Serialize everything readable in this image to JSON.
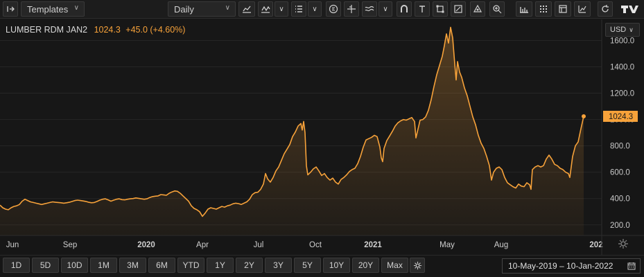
{
  "toolbar": {
    "templates_label": "Templates",
    "interval_label": "Daily"
  },
  "instrument": {
    "name": "LUMBER RDM JAN2",
    "last": "1024.3",
    "change": "+45.0 (+4.60%)",
    "currency": "USD"
  },
  "colors": {
    "line": "#f7a23a",
    "background": "#161616",
    "grid": "#262626"
  },
  "chart_data": {
    "type": "area",
    "y_ticks": [
      "1600.0",
      "1400.0",
      "1200.0",
      "1000.0",
      "800.0",
      "600.0",
      "400.0",
      "200.0"
    ],
    "ylim": [
      120,
      1760
    ],
    "x_ticks": [
      "Jun",
      "Sep",
      "2020",
      "Apr",
      "Jul",
      "Oct",
      "2021",
      "May",
      "Aug",
      "202"
    ],
    "last_price_label": "1024.3",
    "series": [
      {
        "points": [
          [
            0,
            350
          ],
          [
            4,
            330
          ],
          [
            8,
            320
          ],
          [
            12,
            315
          ],
          [
            16,
            330
          ],
          [
            20,
            340
          ],
          [
            24,
            345
          ],
          [
            28,
            355
          ],
          [
            32,
            380
          ],
          [
            36,
            395
          ],
          [
            40,
            385
          ],
          [
            44,
            375
          ],
          [
            48,
            370
          ],
          [
            52,
            365
          ],
          [
            56,
            360
          ],
          [
            60,
            355
          ],
          [
            64,
            360
          ],
          [
            68,
            365
          ],
          [
            72,
            370
          ],
          [
            76,
            375
          ],
          [
            80,
            372
          ],
          [
            84,
            370
          ],
          [
            88,
            368
          ],
          [
            92,
            365
          ],
          [
            96,
            368
          ],
          [
            100,
            372
          ],
          [
            104,
            378
          ],
          [
            108,
            385
          ],
          [
            112,
            388
          ],
          [
            116,
            385
          ],
          [
            120,
            382
          ],
          [
            124,
            378
          ],
          [
            128,
            372
          ],
          [
            132,
            368
          ],
          [
            136,
            370
          ],
          [
            140,
            378
          ],
          [
            144,
            388
          ],
          [
            148,
            395
          ],
          [
            152,
            398
          ],
          [
            156,
            390
          ],
          [
            160,
            380
          ],
          [
            164,
            388
          ],
          [
            168,
            395
          ],
          [
            172,
            398
          ],
          [
            176,
            392
          ],
          [
            180,
            390
          ],
          [
            184,
            395
          ],
          [
            188,
            398
          ],
          [
            192,
            400
          ],
          [
            196,
            405
          ],
          [
            200,
            402
          ],
          [
            204,
            398
          ],
          [
            208,
            395
          ],
          [
            212,
            398
          ],
          [
            216,
            408
          ],
          [
            220,
            415
          ],
          [
            224,
            418
          ],
          [
            228,
            420
          ],
          [
            232,
            430
          ],
          [
            236,
            428
          ],
          [
            240,
            425
          ],
          [
            244,
            440
          ],
          [
            248,
            450
          ],
          [
            252,
            458
          ],
          [
            256,
            455
          ],
          [
            260,
            440
          ],
          [
            264,
            420
          ],
          [
            268,
            400
          ],
          [
            272,
            380
          ],
          [
            276,
            345
          ],
          [
            280,
            325
          ],
          [
            284,
            315
          ],
          [
            288,
            300
          ],
          [
            292,
            265
          ],
          [
            296,
            290
          ],
          [
            300,
            320
          ],
          [
            304,
            330
          ],
          [
            308,
            325
          ],
          [
            312,
            320
          ],
          [
            316,
            330
          ],
          [
            320,
            340
          ],
          [
            324,
            335
          ],
          [
            328,
            345
          ],
          [
            332,
            350
          ],
          [
            336,
            360
          ],
          [
            340,
            365
          ],
          [
            344,
            362
          ],
          [
            348,
            355
          ],
          [
            352,
            365
          ],
          [
            356,
            375
          ],
          [
            360,
            395
          ],
          [
            364,
            430
          ],
          [
            368,
            445
          ],
          [
            372,
            448
          ],
          [
            376,
            470
          ],
          [
            380,
            510
          ],
          [
            383,
            590
          ],
          [
            386,
            550
          ],
          [
            390,
            525
          ],
          [
            394,
            560
          ],
          [
            398,
            610
          ],
          [
            402,
            640
          ],
          [
            406,
            690
          ],
          [
            410,
            740
          ],
          [
            414,
            775
          ],
          [
            418,
            810
          ],
          [
            422,
            870
          ],
          [
            426,
            905
          ],
          [
            430,
            950
          ],
          [
            434,
            970
          ],
          [
            436,
            920
          ],
          [
            438,
            985
          ],
          [
            440,
            900
          ],
          [
            442,
            650
          ],
          [
            444,
            580
          ],
          [
            448,
            600
          ],
          [
            452,
            625
          ],
          [
            456,
            640
          ],
          [
            460,
            610
          ],
          [
            464,
            575
          ],
          [
            468,
            590
          ],
          [
            472,
            560
          ],
          [
            476,
            540
          ],
          [
            480,
            555
          ],
          [
            484,
            525
          ],
          [
            488,
            510
          ],
          [
            492,
            545
          ],
          [
            496,
            560
          ],
          [
            500,
            580
          ],
          [
            504,
            605
          ],
          [
            508,
            620
          ],
          [
            512,
            630
          ],
          [
            516,
            665
          ],
          [
            520,
            720
          ],
          [
            524,
            790
          ],
          [
            528,
            845
          ],
          [
            532,
            855
          ],
          [
            536,
            865
          ],
          [
            540,
            880
          ],
          [
            544,
            870
          ],
          [
            548,
            790
          ],
          [
            550,
            710
          ],
          [
            552,
            680
          ],
          [
            554,
            780
          ],
          [
            558,
            840
          ],
          [
            562,
            875
          ],
          [
            566,
            910
          ],
          [
            570,
            950
          ],
          [
            574,
            975
          ],
          [
            578,
            990
          ],
          [
            582,
            1000
          ],
          [
            586,
            995
          ],
          [
            590,
            1005
          ],
          [
            594,
            1015
          ],
          [
            598,
            985
          ],
          [
            600,
            860
          ],
          [
            602,
            905
          ],
          [
            606,
            995
          ],
          [
            610,
            1000
          ],
          [
            614,
            1020
          ],
          [
            618,
            1070
          ],
          [
            622,
            1150
          ],
          [
            626,
            1250
          ],
          [
            630,
            1340
          ],
          [
            634,
            1410
          ],
          [
            638,
            1480
          ],
          [
            641,
            1560
          ],
          [
            644,
            1650
          ],
          [
            647,
            1580
          ],
          [
            650,
            1700
          ],
          [
            653,
            1620
          ],
          [
            656,
            1420
          ],
          [
            658,
            1300
          ],
          [
            660,
            1440
          ],
          [
            663,
            1360
          ],
          [
            666,
            1320
          ],
          [
            670,
            1240
          ],
          [
            674,
            1180
          ],
          [
            678,
            1100
          ],
          [
            682,
            1020
          ],
          [
            686,
            960
          ],
          [
            690,
            880
          ],
          [
            694,
            820
          ],
          [
            698,
            780
          ],
          [
            702,
            720
          ],
          [
            706,
            650
          ],
          [
            709,
            540
          ],
          [
            712,
            600
          ],
          [
            716,
            630
          ],
          [
            720,
            640
          ],
          [
            724,
            620
          ],
          [
            728,
            560
          ],
          [
            732,
            520
          ],
          [
            736,
            505
          ],
          [
            740,
            490
          ],
          [
            744,
            480
          ],
          [
            748,
            510
          ],
          [
            752,
            495
          ],
          [
            756,
            490
          ],
          [
            760,
            520
          ],
          [
            764,
            505
          ],
          [
            766,
            470
          ],
          [
            768,
            620
          ],
          [
            772,
            640
          ],
          [
            776,
            650
          ],
          [
            780,
            640
          ],
          [
            784,
            650
          ],
          [
            788,
            700
          ],
          [
            792,
            730
          ],
          [
            796,
            700
          ],
          [
            800,
            660
          ],
          [
            804,
            650
          ],
          [
            808,
            630
          ],
          [
            812,
            620
          ],
          [
            816,
            600
          ],
          [
            820,
            590
          ],
          [
            822,
            560
          ],
          [
            826,
            720
          ],
          [
            830,
            800
          ],
          [
            834,
            830
          ],
          [
            838,
            930
          ],
          [
            842,
            1024
          ]
        ]
      }
    ]
  },
  "range_buttons": [
    "1D",
    "5D",
    "10D",
    "1M",
    "3M",
    "6M",
    "YTD",
    "1Y",
    "2Y",
    "3Y",
    "5Y",
    "10Y",
    "20Y",
    "Max"
  ],
  "date_range": "10-May-2019  –  10-Jan-2022"
}
